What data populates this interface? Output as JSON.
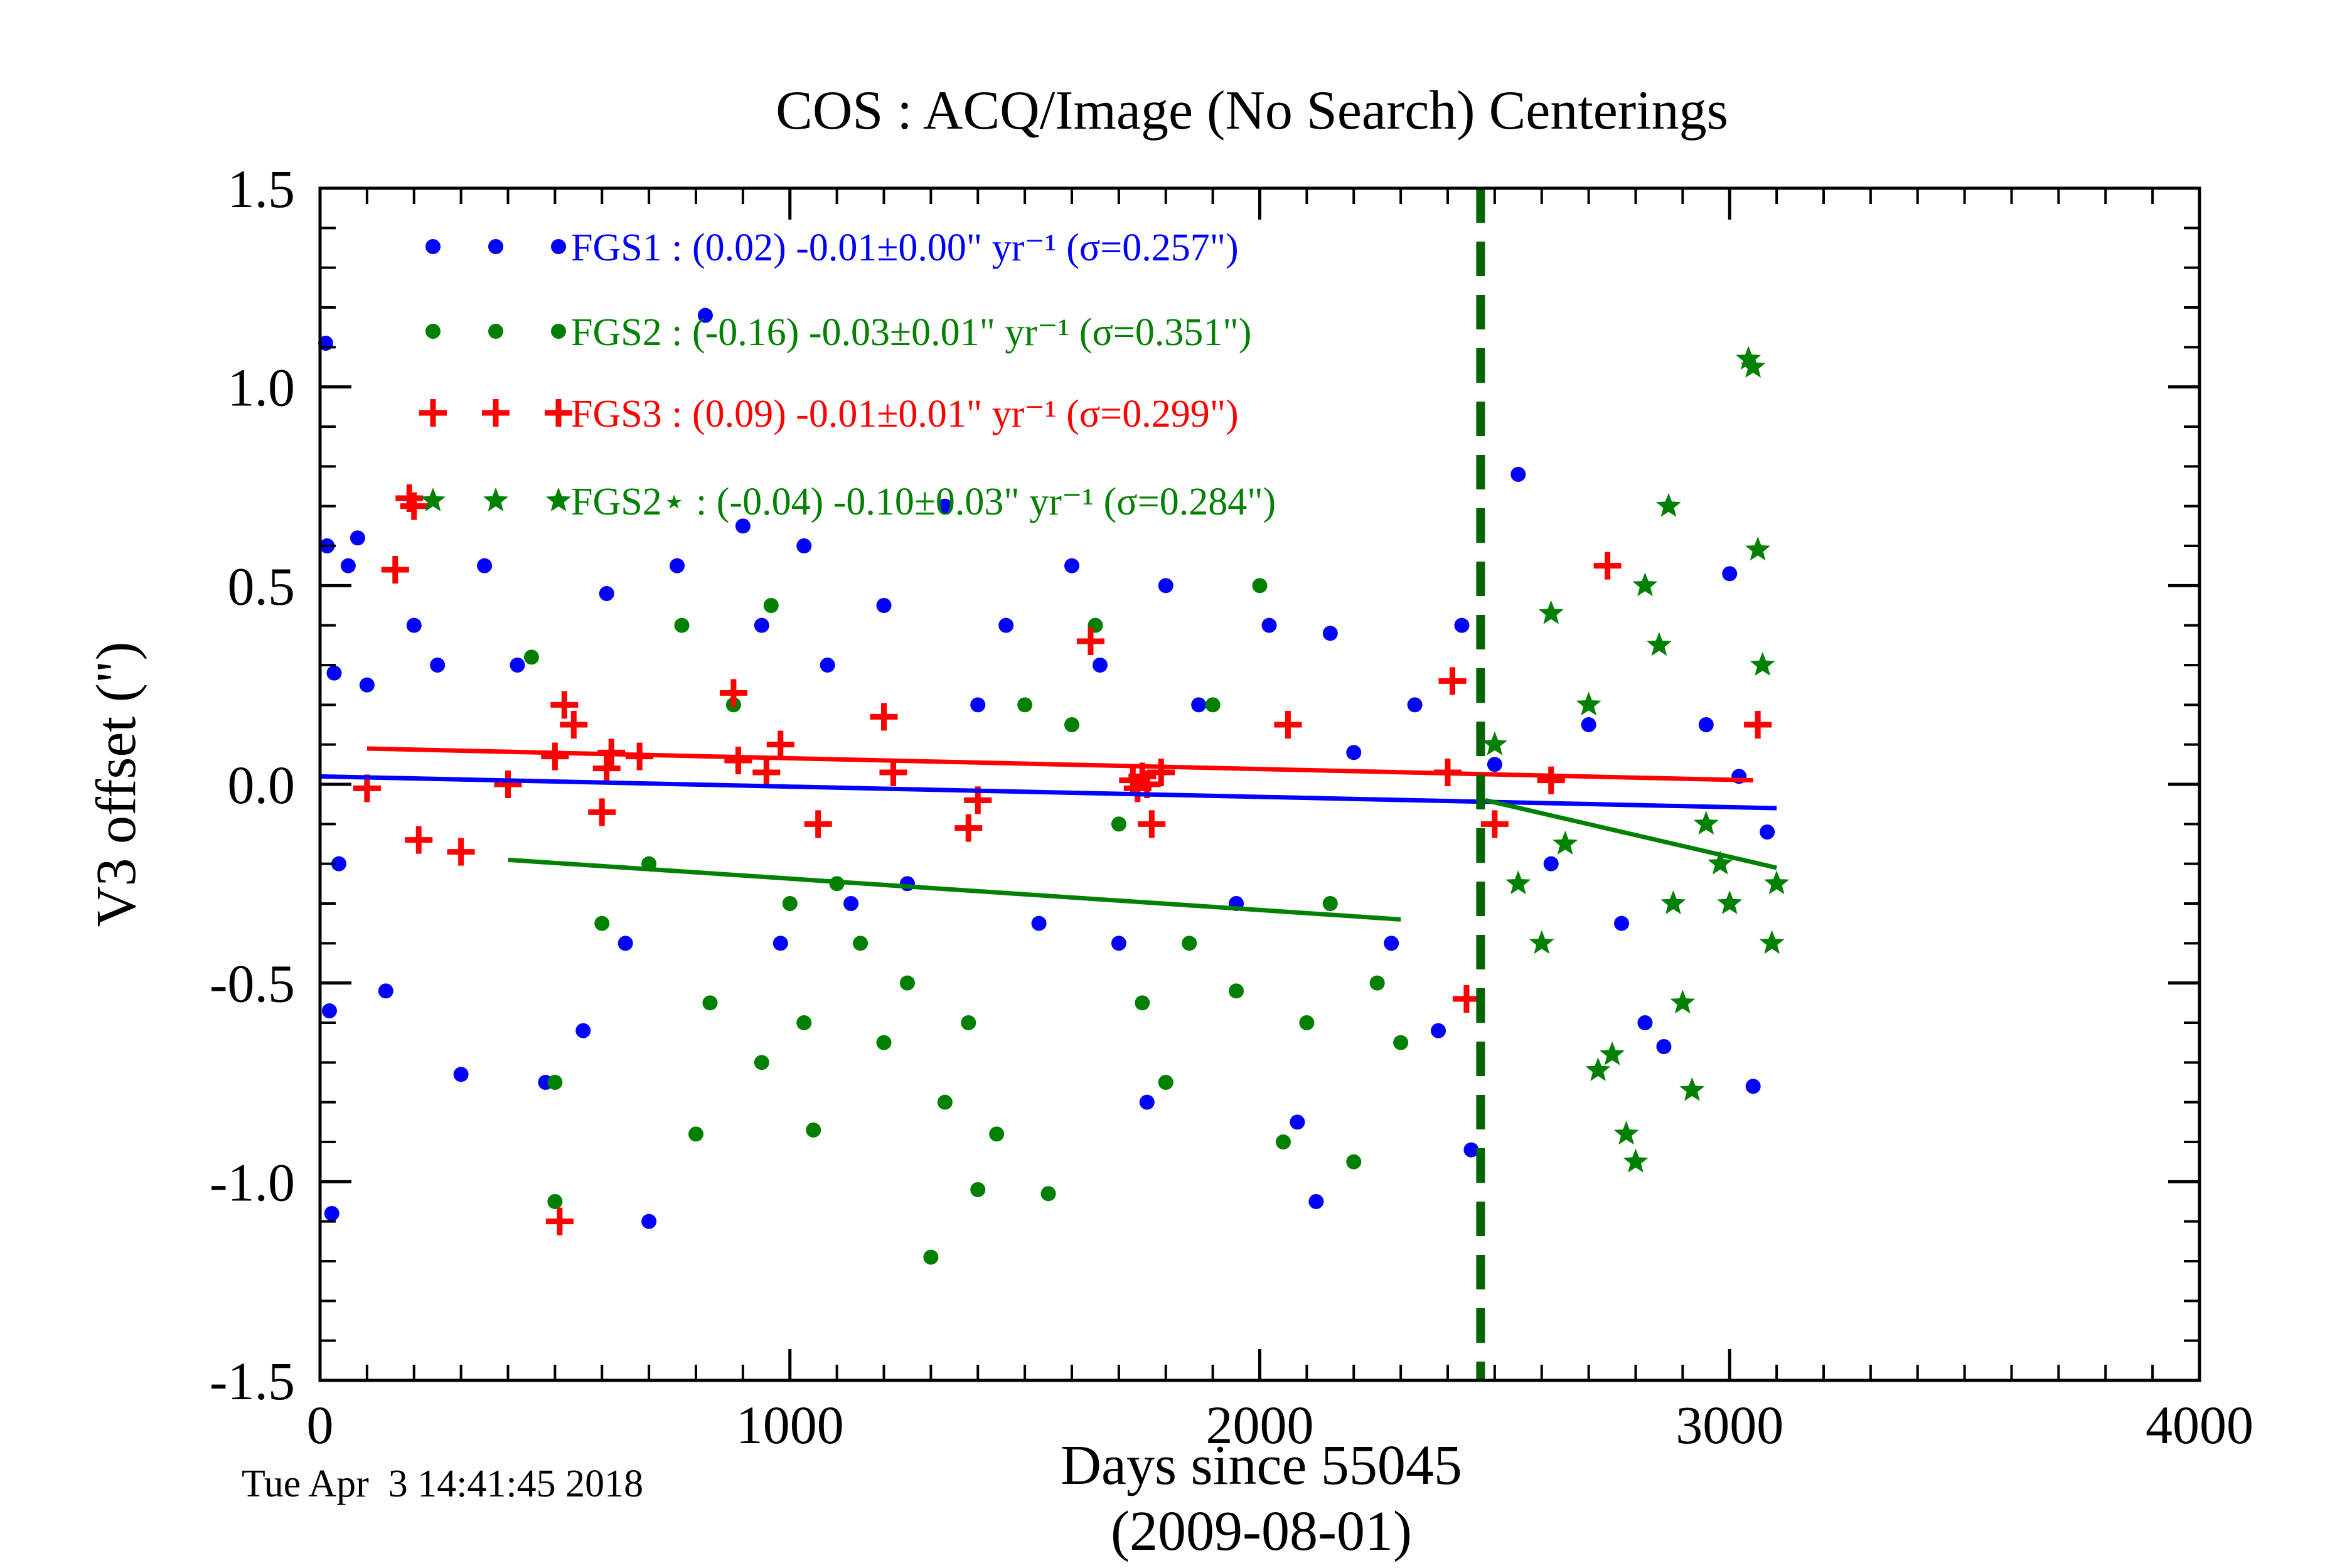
{
  "chart_data": {
    "type": "scatter",
    "title": "COS : ACQ/Image (No Search) Centerings",
    "xlabel": "Days since 55045",
    "xlabel_sub": "(2009-08-01)",
    "ylabel": "V3 offset (\")",
    "xlim": [
      0,
      4000
    ],
    "ylim": [
      -1.5,
      1.5
    ],
    "xticks": [
      "0",
      "1000",
      "2000",
      "3000",
      "4000"
    ],
    "yticks": [
      "1.5",
      "1.0",
      "0.5",
      "0.0",
      "-0.5",
      "-1.0",
      "-1.5"
    ],
    "grid": false,
    "legend_position": "top-left",
    "timestamp": "Tue Apr  3 14:41:45 2018",
    "vline": {
      "x": 2470,
      "color": "#006400",
      "style": "dashed"
    },
    "series": [
      {
        "name": "FGS1",
        "label": "FGS1 : (0.02) -0.01±0.00\" yr⁻¹ (σ=0.257\")",
        "color": "#0000ff",
        "marker": "circle",
        "fit": {
          "x": [
            0,
            3100
          ],
          "y": [
            0.02,
            -0.06
          ]
        },
        "points": [
          [
            12,
            1.11
          ],
          [
            15,
            0.6
          ],
          [
            20,
            -0.57
          ],
          [
            25,
            -1.08
          ],
          [
            30,
            0.28
          ],
          [
            40,
            -0.2
          ],
          [
            60,
            0.55
          ],
          [
            80,
            0.62
          ],
          [
            100,
            0.25
          ],
          [
            140,
            -0.52
          ],
          [
            200,
            0.4
          ],
          [
            250,
            0.3
          ],
          [
            300,
            -0.73
          ],
          [
            350,
            0.55
          ],
          [
            420,
            0.3
          ],
          [
            480,
            -0.75
          ],
          [
            560,
            -0.62
          ],
          [
            610,
            0.48
          ],
          [
            650,
            -0.4
          ],
          [
            700,
            -1.1
          ],
          [
            760,
            0.55
          ],
          [
            820,
            1.18
          ],
          [
            900,
            0.65
          ],
          [
            940,
            0.4
          ],
          [
            980,
            -0.4
          ],
          [
            1030,
            0.6
          ],
          [
            1080,
            0.3
          ],
          [
            1130,
            -0.3
          ],
          [
            1200,
            0.45
          ],
          [
            1250,
            -0.25
          ],
          [
            1330,
            0.7
          ],
          [
            1400,
            0.2
          ],
          [
            1460,
            0.4
          ],
          [
            1530,
            -0.35
          ],
          [
            1600,
            0.55
          ],
          [
            1660,
            0.3
          ],
          [
            1700,
            -0.4
          ],
          [
            1760,
            -0.8
          ],
          [
            1800,
            0.5
          ],
          [
            1870,
            0.2
          ],
          [
            1950,
            -0.3
          ],
          [
            2020,
            0.4
          ],
          [
            2080,
            -0.85
          ],
          [
            2120,
            -1.05
          ],
          [
            2150,
            0.38
          ],
          [
            2200,
            0.08
          ],
          [
            2280,
            -0.4
          ],
          [
            2330,
            0.2
          ],
          [
            2380,
            -0.62
          ],
          [
            2430,
            0.4
          ],
          [
            2450,
            -0.92
          ],
          [
            2500,
            0.05
          ],
          [
            2550,
            0.78
          ],
          [
            2620,
            -0.2
          ],
          [
            2700,
            0.15
          ],
          [
            2770,
            -0.35
          ],
          [
            2820,
            -0.6
          ],
          [
            2860,
            -0.66
          ],
          [
            2950,
            0.15
          ],
          [
            3000,
            0.53
          ],
          [
            3020,
            0.02
          ],
          [
            3050,
            -0.76
          ],
          [
            3080,
            -0.12
          ]
        ]
      },
      {
        "name": "FGS2",
        "label": "FGS2 : (-0.16) -0.03±0.01\" yr⁻¹ (σ=0.351\")",
        "color": "#008000",
        "marker": "circle",
        "fit": {
          "x": [
            400,
            2300
          ],
          "y": [
            -0.19,
            -0.34
          ]
        },
        "points": [
          [
            450,
            0.32
          ],
          [
            500,
            -0.75
          ],
          [
            500,
            -1.05
          ],
          [
            600,
            -0.35
          ],
          [
            700,
            -0.2
          ],
          [
            770,
            0.4
          ],
          [
            800,
            -0.88
          ],
          [
            830,
            -0.55
          ],
          [
            880,
            0.2
          ],
          [
            940,
            -0.7
          ],
          [
            960,
            0.45
          ],
          [
            1000,
            -0.3
          ],
          [
            1030,
            -0.6
          ],
          [
            1050,
            -0.87
          ],
          [
            1100,
            -0.25
          ],
          [
            1150,
            -0.4
          ],
          [
            1200,
            -0.65
          ],
          [
            1250,
            -0.5
          ],
          [
            1300,
            -1.19
          ],
          [
            1330,
            -0.8
          ],
          [
            1380,
            -0.6
          ],
          [
            1400,
            -1.02
          ],
          [
            1440,
            -0.88
          ],
          [
            1500,
            0.2
          ],
          [
            1550,
            -1.03
          ],
          [
            1600,
            0.15
          ],
          [
            1650,
            0.4
          ],
          [
            1700,
            -0.1
          ],
          [
            1750,
            -0.55
          ],
          [
            1800,
            -0.75
          ],
          [
            1850,
            -0.4
          ],
          [
            1900,
            0.2
          ],
          [
            1950,
            -0.52
          ],
          [
            2000,
            0.5
          ],
          [
            2050,
            -0.9
          ],
          [
            2100,
            -0.6
          ],
          [
            2150,
            -0.3
          ],
          [
            2200,
            -0.95
          ],
          [
            2250,
            -0.5
          ],
          [
            2300,
            -0.65
          ]
        ]
      },
      {
        "name": "FGS3",
        "label": "FGS3 : (0.09) -0.01±0.01\" yr⁻¹ (σ=0.299\")",
        "color": "#ff0000",
        "marker": "plus",
        "fit": {
          "x": [
            100,
            3050
          ],
          "y": [
            0.09,
            0.01
          ]
        },
        "points": [
          [
            100,
            -0.01
          ],
          [
            160,
            0.54
          ],
          [
            190,
            0.72
          ],
          [
            200,
            0.7
          ],
          [
            210,
            -0.14
          ],
          [
            300,
            -0.17
          ],
          [
            400,
            0.0
          ],
          [
            500,
            0.07
          ],
          [
            510,
            -1.1
          ],
          [
            520,
            0.2
          ],
          [
            540,
            0.15
          ],
          [
            600,
            -0.07
          ],
          [
            610,
            0.04
          ],
          [
            620,
            0.08
          ],
          [
            680,
            0.07
          ],
          [
            880,
            0.23
          ],
          [
            890,
            0.06
          ],
          [
            950,
            0.03
          ],
          [
            980,
            0.1
          ],
          [
            1060,
            -0.1
          ],
          [
            1200,
            0.17
          ],
          [
            1220,
            0.03
          ],
          [
            1380,
            -0.11
          ],
          [
            1400,
            -0.04
          ],
          [
            1640,
            0.36
          ],
          [
            1730,
            0.01
          ],
          [
            1740,
            -0.01
          ],
          [
            1750,
            0.02
          ],
          [
            1760,
            0.0
          ],
          [
            1770,
            -0.1
          ],
          [
            1790,
            0.03
          ],
          [
            2060,
            0.15
          ],
          [
            2400,
            0.03
          ],
          [
            2410,
            0.26
          ],
          [
            2440,
            -0.54
          ],
          [
            2500,
            -0.1
          ],
          [
            2620,
            0.01
          ],
          [
            2740,
            0.55
          ],
          [
            3060,
            0.15
          ]
        ]
      },
      {
        "name": "FGS2⋆",
        "label": "FGS2⋆ : (-0.04) -0.10±0.03\" yr⁻¹ (σ=0.284\")",
        "color": "#008000",
        "marker": "star",
        "fit": {
          "x": [
            2480,
            3100
          ],
          "y": [
            -0.04,
            -0.21
          ]
        },
        "points": [
          [
            2500,
            0.1
          ],
          [
            2550,
            -0.25
          ],
          [
            2600,
            -0.4
          ],
          [
            2620,
            0.43
          ],
          [
            2650,
            -0.15
          ],
          [
            2700,
            0.2
          ],
          [
            2720,
            -0.72
          ],
          [
            2750,
            -0.68
          ],
          [
            2780,
            -0.88
          ],
          [
            2800,
            -0.95
          ],
          [
            2820,
            0.5
          ],
          [
            2850,
            0.35
          ],
          [
            2870,
            0.7
          ],
          [
            2880,
            -0.3
          ],
          [
            2900,
            -0.55
          ],
          [
            2920,
            -0.77
          ],
          [
            2950,
            -0.1
          ],
          [
            2980,
            -0.2
          ],
          [
            3000,
            -0.3
          ],
          [
            3040,
            1.07
          ],
          [
            3050,
            1.05
          ],
          [
            3060,
            0.59
          ],
          [
            3070,
            0.3
          ],
          [
            3090,
            -0.4
          ],
          [
            3100,
            -0.25
          ]
        ]
      }
    ]
  }
}
